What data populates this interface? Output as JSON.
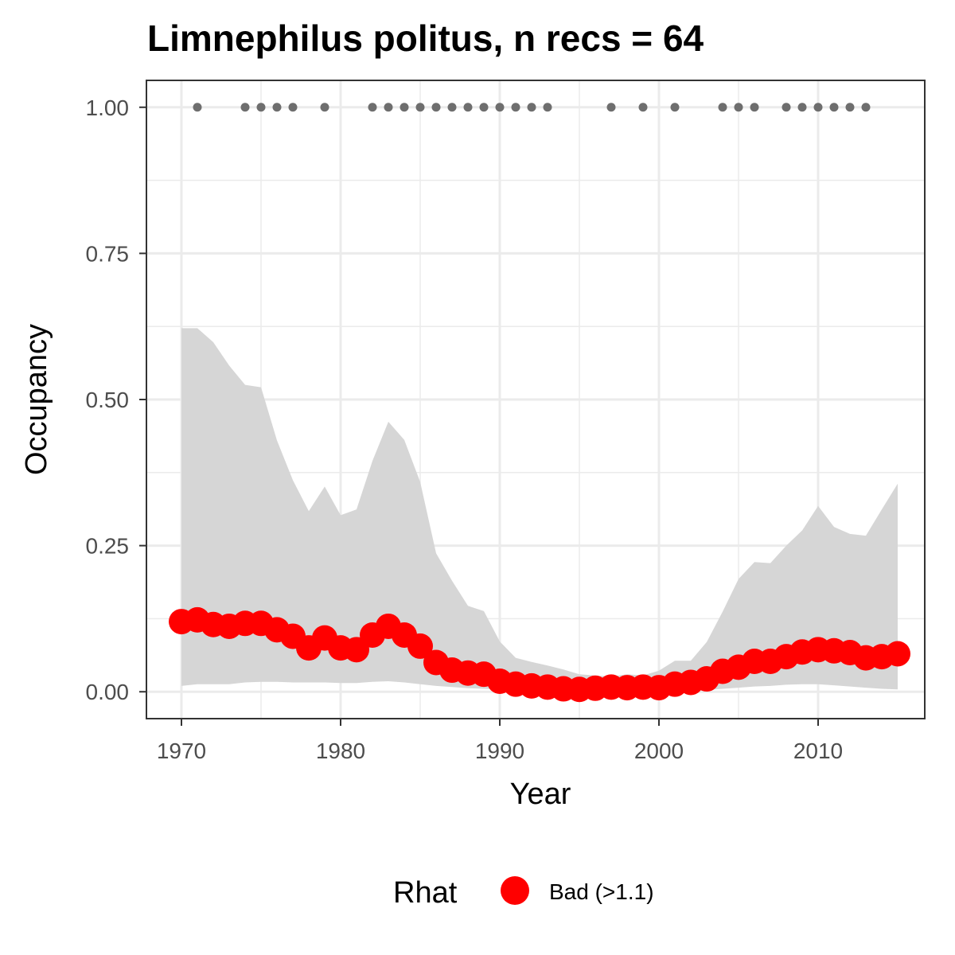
{
  "chart_data": {
    "type": "line",
    "title": "Limnephilus politus, n recs = 64",
    "xlabel": "Year",
    "ylabel": "Occupancy",
    "xlim": [
      1967.8,
      2016.7
    ],
    "ylim": [
      -0.046,
      1.046
    ],
    "x_ticks": [
      1970,
      1980,
      1990,
      2000,
      2010
    ],
    "x_tick_labels": [
      "1970",
      "1980",
      "1990",
      "2000",
      "2010"
    ],
    "y_ticks": [
      0,
      0.25,
      0.5,
      0.75,
      1.0
    ],
    "y_tick_labels": [
      "0.00",
      "0.25",
      "0.50",
      "0.75",
      "1.00"
    ],
    "grid": true,
    "legend": {
      "position": "bottom",
      "title": "Rhat",
      "entries": [
        {
          "label": "Bad (>1.1)",
          "color": "#ff0000"
        }
      ]
    },
    "colors": {
      "ribbon": "#d6d6d6",
      "mean": "#ff0000",
      "records": "#6e6e6e",
      "panel_border": "#333333",
      "grid": "#ebebeb"
    },
    "years": [
      1970,
      1971,
      1972,
      1973,
      1974,
      1975,
      1976,
      1977,
      1978,
      1979,
      1980,
      1981,
      1982,
      1983,
      1984,
      1985,
      1986,
      1987,
      1988,
      1989,
      1990,
      1991,
      1992,
      1993,
      1994,
      1995,
      1996,
      1997,
      1998,
      1999,
      2000,
      2001,
      2002,
      2003,
      2004,
      2005,
      2006,
      2007,
      2008,
      2009,
      2010,
      2011,
      2012,
      2013,
      2014,
      2015
    ],
    "series": [
      {
        "name": "Bad (>1.1)",
        "values": [
          0.12,
          0.123,
          0.115,
          0.112,
          0.117,
          0.117,
          0.106,
          0.095,
          0.075,
          0.092,
          0.075,
          0.072,
          0.097,
          0.112,
          0.097,
          0.078,
          0.05,
          0.037,
          0.032,
          0.03,
          0.018,
          0.013,
          0.01,
          0.008,
          0.005,
          0.004,
          0.006,
          0.008,
          0.007,
          0.008,
          0.007,
          0.013,
          0.016,
          0.022,
          0.035,
          0.042,
          0.052,
          0.052,
          0.06,
          0.068,
          0.072,
          0.07,
          0.067,
          0.058,
          0.06,
          0.065
        ]
      }
    ],
    "ribbon_lower": [
      0.01,
      0.013,
      0.013,
      0.013,
      0.016,
      0.017,
      0.017,
      0.016,
      0.016,
      0.016,
      0.015,
      0.015,
      0.017,
      0.018,
      0.016,
      0.013,
      0.01,
      0.008,
      0.006,
      0.005,
      0.004,
      0.003,
      0.003,
      0.002,
      0.001,
      0.001,
      0.001,
      0.001,
      0.001,
      0.001,
      0.001,
      0.002,
      0.002,
      0.003,
      0.005,
      0.007,
      0.009,
      0.01,
      0.012,
      0.013,
      0.013,
      0.011,
      0.009,
      0.007,
      0.005,
      0.004
    ],
    "ribbon_upper": [
      0.622,
      0.622,
      0.598,
      0.558,
      0.525,
      0.521,
      0.43,
      0.362,
      0.309,
      0.351,
      0.302,
      0.312,
      0.395,
      0.462,
      0.431,
      0.359,
      0.237,
      0.19,
      0.147,
      0.138,
      0.086,
      0.058,
      0.051,
      0.045,
      0.038,
      0.03,
      0.028,
      0.026,
      0.03,
      0.028,
      0.036,
      0.053,
      0.053,
      0.085,
      0.137,
      0.193,
      0.222,
      0.22,
      0.25,
      0.276,
      0.318,
      0.282,
      0.27,
      0.267,
      0.312,
      0.356
    ],
    "record_years": [
      1971,
      1974,
      1975,
      1976,
      1977,
      1979,
      1982,
      1983,
      1984,
      1985,
      1986,
      1987,
      1988,
      1989,
      1990,
      1991,
      1992,
      1993,
      1997,
      1999,
      2001,
      2004,
      2005,
      2006,
      2008,
      2009,
      2010,
      2011,
      2012,
      2013
    ],
    "record_value": 1.0
  }
}
